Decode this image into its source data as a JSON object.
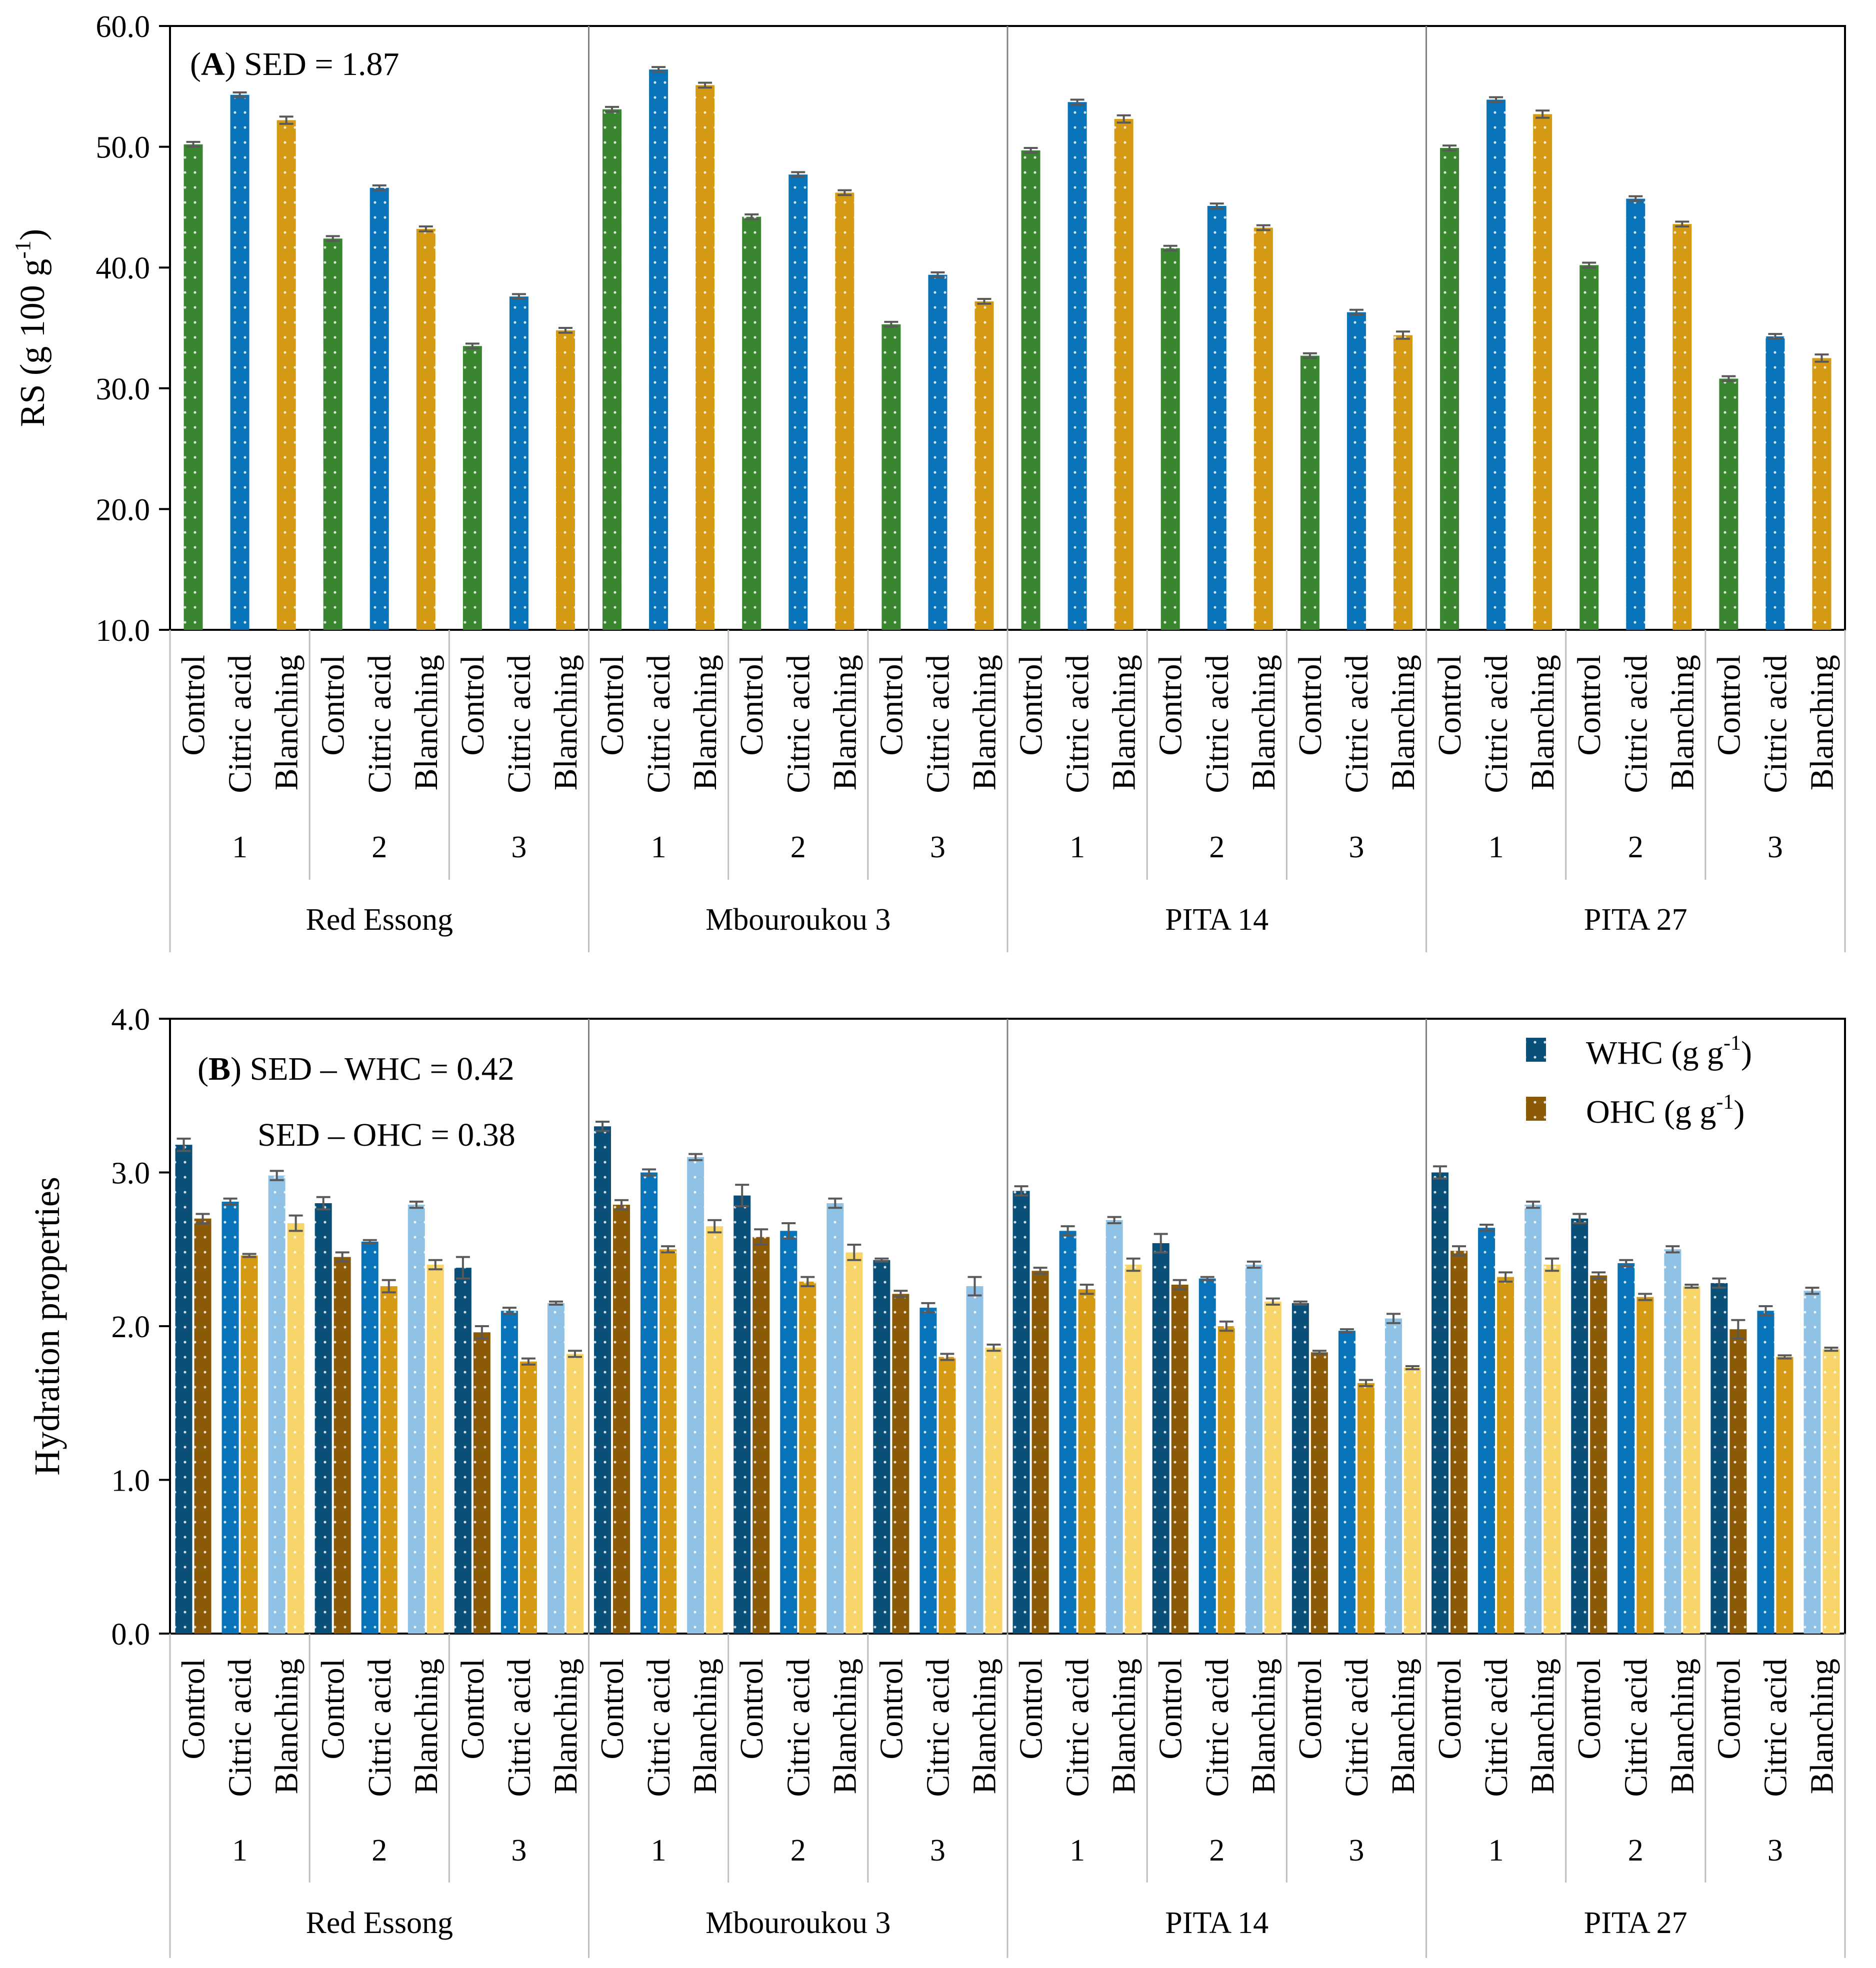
{
  "chart_data": [
    {
      "id": "A",
      "type": "bar",
      "title_letter": "A",
      "title_rest": " SED = 1.87",
      "ylabel": "RS (g 100 g",
      "ylabel_sup": "-1",
      "ylabel_end": ")",
      "ylim": [
        10.0,
        60.0
      ],
      "yticks": [
        "10.0",
        "20.0",
        "30.0",
        "40.0",
        "50.0",
        "60.0"
      ],
      "varieties": [
        "Red Essong",
        "Mbouroukou 3",
        "PITA 14",
        "PITA 27"
      ],
      "levels": [
        "1",
        "2",
        "3"
      ],
      "treatments": [
        "Control",
        "Citric acid",
        "Blanching"
      ],
      "colors": [
        "#3a8630",
        "#0873b9",
        "#d49a14"
      ],
      "values": [
        [
          [
            50.2,
            54.3,
            52.2
          ],
          [
            42.4,
            46.6,
            43.2
          ],
          [
            33.5,
            37.6,
            34.8
          ]
        ],
        [
          [
            53.1,
            56.4,
            55.1
          ],
          [
            44.2,
            47.7,
            46.2
          ],
          [
            35.3,
            39.4,
            37.2
          ]
        ],
        [
          [
            49.7,
            53.7,
            52.3
          ],
          [
            41.6,
            45.1,
            43.3
          ],
          [
            32.7,
            36.3,
            34.4
          ]
        ],
        [
          [
            49.9,
            53.9,
            52.7
          ],
          [
            40.2,
            45.7,
            43.6
          ],
          [
            30.8,
            34.3,
            32.5
          ]
        ]
      ],
      "errors": [
        [
          [
            0.2,
            0.2,
            0.3
          ],
          [
            0.2,
            0.2,
            0.2
          ],
          [
            0.2,
            0.2,
            0.2
          ]
        ],
        [
          [
            0.2,
            0.2,
            0.2
          ],
          [
            0.2,
            0.2,
            0.2
          ],
          [
            0.2,
            0.2,
            0.2
          ]
        ],
        [
          [
            0.2,
            0.2,
            0.3
          ],
          [
            0.2,
            0.2,
            0.2
          ],
          [
            0.2,
            0.2,
            0.3
          ]
        ],
        [
          [
            0.2,
            0.2,
            0.3
          ],
          [
            0.2,
            0.2,
            0.2
          ],
          [
            0.2,
            0.2,
            0.3
          ]
        ]
      ]
    },
    {
      "id": "B",
      "type": "bar",
      "title_letter": "B",
      "title_rest": " SED – WHC = 0.42",
      "annotation2": "SED – OHC = 0.38",
      "ylabel": "Hydration properties",
      "ylim": [
        0.0,
        4.0
      ],
      "yticks": [
        "0.0",
        "1.0",
        "2.0",
        "3.0",
        "4.0"
      ],
      "varieties": [
        "Red Essong",
        "Mbouroukou 3",
        "PITA 14",
        "PITA 27"
      ],
      "levels": [
        "1",
        "2",
        "3"
      ],
      "treatments": [
        "Control",
        "Citric acid",
        "Blanching"
      ],
      "legend": [
        {
          "label": "WHC (g g",
          "sup": "-1",
          "end": ")",
          "color": "#0a4f78"
        },
        {
          "label": "OHC (g g",
          "sup": "-1",
          "end": ")",
          "color": "#8b5a07"
        }
      ],
      "series": [
        {
          "name": "WHC",
          "colors": [
            "#0a4f78",
            "#0873b9",
            "#8fc2e5"
          ]
        },
        {
          "name": "OHC",
          "colors": [
            "#8b5a07",
            "#d49a14",
            "#f7d56b"
          ]
        }
      ],
      "whc": [
        [
          [
            3.18,
            2.81,
            2.98
          ],
          [
            2.8,
            2.55,
            2.79
          ],
          [
            2.38,
            2.1,
            2.15
          ]
        ],
        [
          [
            3.3,
            3.0,
            3.1
          ],
          [
            2.85,
            2.62,
            2.8
          ],
          [
            2.43,
            2.12,
            2.26
          ]
        ],
        [
          [
            2.88,
            2.62,
            2.69
          ],
          [
            2.54,
            2.31,
            2.4
          ],
          [
            2.15,
            1.97,
            2.05
          ]
        ],
        [
          [
            3.0,
            2.64,
            2.79
          ],
          [
            2.7,
            2.41,
            2.5
          ],
          [
            2.28,
            2.1,
            2.23
          ]
        ]
      ],
      "whc_err": [
        [
          [
            0.04,
            0.02,
            0.03
          ],
          [
            0.04,
            0.01,
            0.02
          ],
          [
            0.07,
            0.02,
            0.01
          ]
        ],
        [
          [
            0.03,
            0.02,
            0.02
          ],
          [
            0.07,
            0.05,
            0.03
          ],
          [
            0.01,
            0.03,
            0.06
          ]
        ],
        [
          [
            0.03,
            0.03,
            0.02
          ],
          [
            0.06,
            0.01,
            0.02
          ],
          [
            0.01,
            0.01,
            0.03
          ]
        ],
        [
          [
            0.04,
            0.02,
            0.02
          ],
          [
            0.03,
            0.02,
            0.02
          ],
          [
            0.03,
            0.03,
            0.02
          ]
        ]
      ],
      "ohc": [
        [
          [
            2.7,
            2.46,
            2.67
          ],
          [
            2.45,
            2.26,
            2.4
          ],
          [
            1.96,
            1.77,
            1.82
          ]
        ],
        [
          [
            2.79,
            2.5,
            2.65
          ],
          [
            2.58,
            2.29,
            2.48
          ],
          [
            2.21,
            1.8,
            1.86
          ]
        ],
        [
          [
            2.36,
            2.24,
            2.4
          ],
          [
            2.27,
            2.0,
            2.16
          ],
          [
            1.83,
            1.63,
            1.73
          ]
        ],
        [
          [
            2.49,
            2.32,
            2.4
          ],
          [
            2.33,
            2.19,
            2.26
          ],
          [
            1.98,
            1.8,
            1.85
          ]
        ]
      ],
      "ohc_err": [
        [
          [
            0.03,
            0.01,
            0.05
          ],
          [
            0.03,
            0.04,
            0.03
          ],
          [
            0.04,
            0.02,
            0.02
          ]
        ],
        [
          [
            0.03,
            0.02,
            0.04
          ],
          [
            0.05,
            0.03,
            0.05
          ],
          [
            0.02,
            0.02,
            0.02
          ]
        ],
        [
          [
            0.02,
            0.03,
            0.04
          ],
          [
            0.03,
            0.03,
            0.02
          ],
          [
            0.01,
            0.02,
            0.01
          ]
        ],
        [
          [
            0.03,
            0.03,
            0.04
          ],
          [
            0.02,
            0.02,
            0.01
          ],
          [
            0.06,
            0.01,
            0.01
          ]
        ]
      ]
    }
  ]
}
